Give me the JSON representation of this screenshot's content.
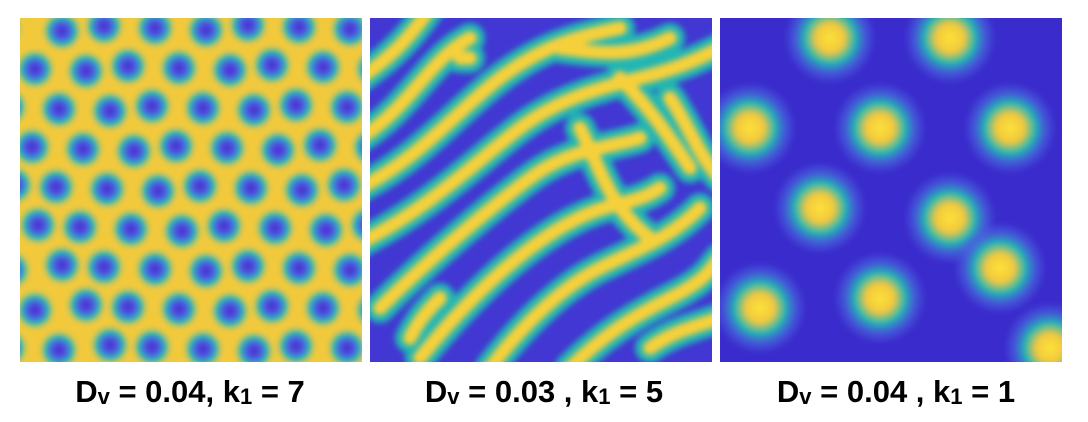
{
  "panels": [
    {
      "symbol_d": "D",
      "sub_d": "v",
      "mid": " = 0.04, ",
      "symbol_k": "k",
      "sub_k": "1",
      "end": " = 7",
      "pattern": "spots-inverted"
    },
    {
      "symbol_d": "D",
      "sub_d": "v",
      "mid": " = 0.03 , ",
      "symbol_k": "k",
      "sub_k": "1",
      "end": " = 5",
      "pattern": "stripes"
    },
    {
      "symbol_d": "D",
      "sub_d": "v",
      "mid": " = 0.04 , ",
      "symbol_k": "k",
      "sub_k": "1",
      "end": " = 1",
      "pattern": "spots"
    }
  ],
  "colors": {
    "low": "#3e2fd6",
    "mid": "#21b3b0",
    "high": "#f7d33a"
  }
}
